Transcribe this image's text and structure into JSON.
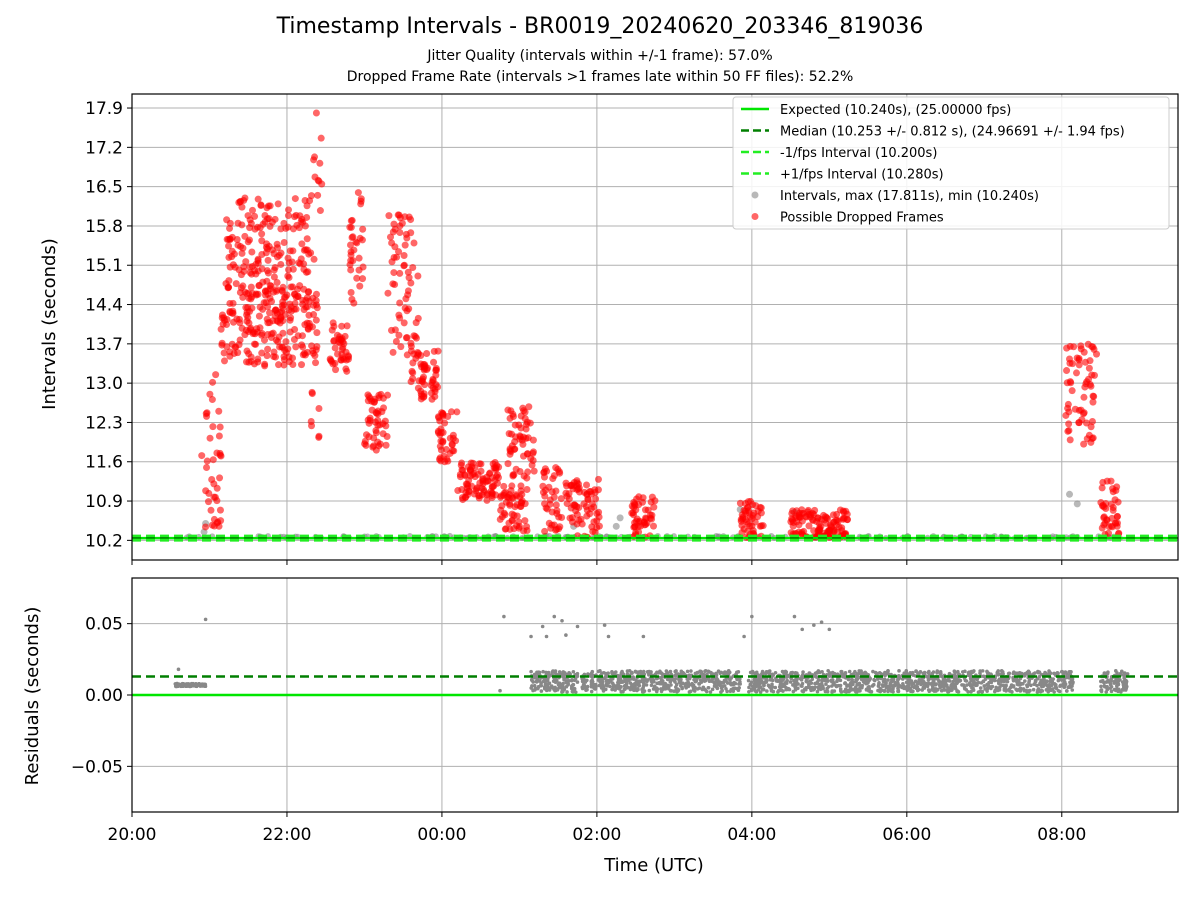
{
  "title": "Timestamp Intervals - BR0019_20240620_203346_819036",
  "subtitle_1": "Jitter Quality (intervals within +/-1 frame): 57.0%",
  "subtitle_2": "Dropped Frame Rate (intervals >1 frames late within 50 FF files): 52.2%",
  "colors": {
    "expected": "#00e600",
    "median": "#007f00",
    "fps_interval": "#22ee22",
    "intervals": "#888888",
    "dropped": "#ff0000",
    "grid": "#b0b0b0"
  },
  "chart_data": [
    {
      "type": "scatter",
      "ylabel": "Intervals (seconds)",
      "xlabel": "",
      "xlim_hours": [
        20.0,
        33.5
      ],
      "ylim": [
        9.85,
        18.15
      ],
      "yticks": [
        "10.2",
        "10.9",
        "11.6",
        "12.3",
        "13.0",
        "13.7",
        "14.4",
        "15.1",
        "15.8",
        "16.5",
        "17.2",
        "17.9"
      ],
      "grid": true,
      "legend_position": "top-right",
      "legend": [
        {
          "label": "Expected (10.240s), (25.00000 fps)",
          "style": "solid-line",
          "color": "#00e600"
        },
        {
          "label": "Median (10.253 +/- 0.812 s), (24.96691 +/- 1.94 fps)",
          "style": "dashed-line",
          "color": "#007f00"
        },
        {
          "label": "-1/fps Interval (10.200s)",
          "style": "dashed-line",
          "color": "#22ee22"
        },
        {
          "label": "+1/fps Interval (10.280s)",
          "style": "dashed-line",
          "color": "#22ee22"
        },
        {
          "label": "Intervals, max (17.811s), min (10.240s)",
          "style": "marker",
          "color": "#888888"
        },
        {
          "label": "Possible Dropped Frames",
          "style": "marker",
          "color": "#ff0000"
        }
      ],
      "reference_lines": {
        "expected": 10.24,
        "median": 10.253,
        "minus_1fps": 10.2,
        "plus_1fps": 10.28
      },
      "dropped_clusters": [
        {
          "name": "ramp-up",
          "x_range": [
            20.9,
            21.15
          ],
          "y_range": [
            10.4,
            13.3
          ]
        },
        {
          "name": "plateau-1",
          "x_range": [
            21.15,
            22.4
          ],
          "y_range": [
            13.3,
            14.6
          ]
        },
        {
          "name": "plateau-1-high",
          "x_range": [
            21.2,
            22.3
          ],
          "y_range": [
            14.6,
            16.3
          ]
        },
        {
          "name": "spike-22:20",
          "x_range": [
            22.3,
            22.45
          ],
          "y_range": [
            12.0,
            17.8
          ]
        },
        {
          "name": "cluster-22:50",
          "x_range": [
            22.55,
            22.8
          ],
          "y_range": [
            13.2,
            14.1
          ]
        },
        {
          "name": "cluster-23:05",
          "x_range": [
            22.8,
            23.0
          ],
          "y_range": [
            14.4,
            16.4
          ]
        },
        {
          "name": "cluster-23:20",
          "x_range": [
            23.0,
            23.3
          ],
          "y_range": [
            11.8,
            12.8
          ]
        },
        {
          "name": "cluster-23:40",
          "x_range": [
            23.3,
            23.7
          ],
          "y_range": [
            13.5,
            16.0
          ]
        },
        {
          "name": "cluster-23:50",
          "x_range": [
            23.6,
            23.95
          ],
          "y_range": [
            12.7,
            13.6
          ]
        },
        {
          "name": "cluster-00:10",
          "x_range": [
            23.95,
            24.2
          ],
          "y_range": [
            11.6,
            12.5
          ]
        },
        {
          "name": "cluster-00:30",
          "x_range": [
            24.2,
            24.75
          ],
          "y_range": [
            10.9,
            11.6
          ]
        },
        {
          "name": "cluster-00:50",
          "x_range": [
            24.75,
            25.1
          ],
          "y_range": [
            10.3,
            11.2
          ]
        },
        {
          "name": "cluster-01:05",
          "x_range": [
            24.85,
            25.2
          ],
          "y_range": [
            11.3,
            12.6
          ]
        },
        {
          "name": "cluster-01:25",
          "x_range": [
            25.3,
            25.55
          ],
          "y_range": [
            10.3,
            11.5
          ]
        },
        {
          "name": "cluster-01:50",
          "x_range": [
            25.6,
            26.05
          ],
          "y_range": [
            10.25,
            11.3
          ]
        },
        {
          "name": "cluster-02:35",
          "x_range": [
            26.45,
            26.75
          ],
          "y_range": [
            10.25,
            11.0
          ]
        },
        {
          "name": "cluster-03:55",
          "x_range": [
            27.85,
            28.15
          ],
          "y_range": [
            10.25,
            10.9
          ]
        },
        {
          "name": "cluster-04:40",
          "x_range": [
            28.5,
            29.25
          ],
          "y_range": [
            10.25,
            10.75
          ]
        },
        {
          "name": "cluster-08:15",
          "x_range": [
            32.05,
            32.45
          ],
          "y_range": [
            11.9,
            13.8
          ]
        },
        {
          "name": "cluster-08:30",
          "x_range": [
            32.5,
            32.75
          ],
          "y_range": [
            10.25,
            11.3
          ]
        }
      ],
      "interval_line_x_range": [
        20.55,
        32.75
      ]
    },
    {
      "type": "scatter",
      "ylabel": "Residuals (seconds)",
      "xlabel": "Time (UTC)",
      "xlim_hours": [
        20.0,
        33.5
      ],
      "ylim": [
        -0.082,
        0.082
      ],
      "yticks": [
        "−0.05",
        "0.00",
        "0.05"
      ],
      "xticks": [
        "20:00",
        "22:00",
        "00:00",
        "02:00",
        "04:00",
        "06:00",
        "08:00"
      ],
      "grid": true,
      "reference_lines": {
        "expected": 0.0,
        "median": 0.013
      },
      "residual_bands": [
        {
          "x_range": [
            20.55,
            20.95
          ],
          "y_range": [
            0.006,
            0.008
          ]
        },
        {
          "x_range": [
            25.15,
            25.75
          ],
          "y_range": [
            0.002,
            0.017
          ]
        },
        {
          "x_range": [
            25.8,
            27.85
          ],
          "y_range": [
            0.002,
            0.017
          ]
        },
        {
          "x_range": [
            27.95,
            30.0
          ],
          "y_range": [
            0.002,
            0.017
          ]
        },
        {
          "x_range": [
            30.0,
            32.15
          ],
          "y_range": [
            0.002,
            0.017
          ]
        },
        {
          "x_range": [
            32.5,
            32.85
          ],
          "y_range": [
            0.002,
            0.017
          ]
        }
      ],
      "outliers": [
        {
          "x": 20.95,
          "y": 0.053
        },
        {
          "x": 24.8,
          "y": 0.055
        },
        {
          "x": 25.15,
          "y": 0.041
        },
        {
          "x": 25.3,
          "y": 0.048
        },
        {
          "x": 25.35,
          "y": 0.041
        },
        {
          "x": 25.45,
          "y": 0.055
        },
        {
          "x": 25.55,
          "y": 0.052
        },
        {
          "x": 25.6,
          "y": 0.042
        },
        {
          "x": 25.75,
          "y": 0.048
        },
        {
          "x": 26.1,
          "y": 0.049
        },
        {
          "x": 26.15,
          "y": 0.041
        },
        {
          "x": 26.6,
          "y": 0.041
        },
        {
          "x": 27.9,
          "y": 0.041
        },
        {
          "x": 28.0,
          "y": 0.055
        },
        {
          "x": 28.55,
          "y": 0.055
        },
        {
          "x": 28.65,
          "y": 0.046
        },
        {
          "x": 28.8,
          "y": 0.049
        },
        {
          "x": 28.9,
          "y": 0.051
        },
        {
          "x": 29.0,
          "y": 0.046
        },
        {
          "x": 24.75,
          "y": 0.003
        },
        {
          "x": 20.6,
          "y": 0.018
        }
      ]
    }
  ]
}
